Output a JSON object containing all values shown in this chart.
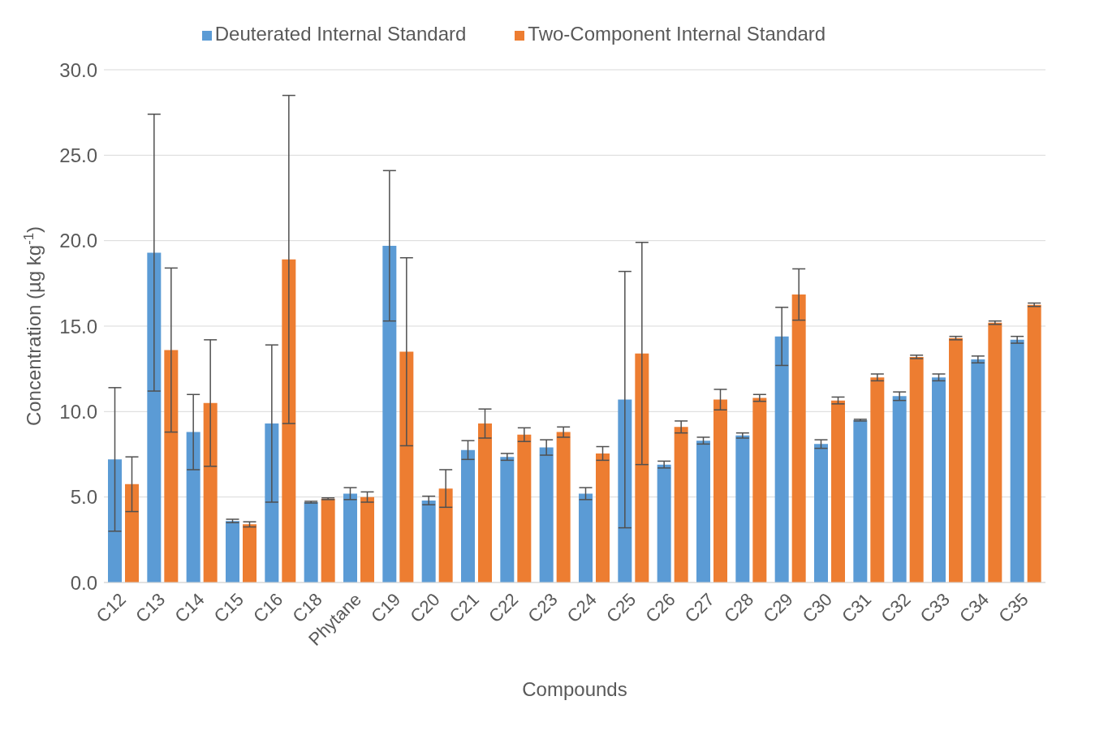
{
  "chart_data": {
    "type": "bar",
    "xlabel": "Compounds",
    "ylabel": "Concentration (µg kg$^{-1}$)",
    "categories": [
      "C12",
      "C13",
      "C14",
      "C15",
      "C16",
      "C18",
      "Phytane",
      "C19",
      "C20",
      "C21",
      "C22",
      "C23",
      "C24",
      "C25",
      "C26",
      "C27",
      "C28",
      "C29",
      "C30",
      "C31",
      "C32",
      "C33",
      "C34",
      "C35"
    ],
    "series": [
      {
        "name": "Deuterated Internal Standard",
        "color": "#5b9bd5",
        "values": [
          7.2,
          19.3,
          8.8,
          3.6,
          9.3,
          4.7,
          5.2,
          19.7,
          4.8,
          7.75,
          7.35,
          7.9,
          5.2,
          10.7,
          6.9,
          8.3,
          8.6,
          14.4,
          8.1,
          9.5,
          10.9,
          12.0,
          13.05,
          14.2
        ],
        "errors": [
          4.2,
          8.1,
          2.2,
          0.1,
          4.6,
          0.05,
          0.35,
          4.4,
          0.25,
          0.55,
          0.2,
          0.45,
          0.35,
          7.5,
          0.2,
          0.2,
          0.15,
          1.7,
          0.25,
          0.05,
          0.25,
          0.2,
          0.2,
          0.2
        ]
      },
      {
        "name": "Two-Component Internal Standard",
        "color": "#ed7d31",
        "values": [
          5.75,
          13.6,
          10.5,
          3.4,
          18.9,
          4.9,
          5.0,
          13.5,
          5.5,
          9.3,
          8.65,
          8.8,
          7.55,
          13.4,
          9.1,
          10.7,
          10.8,
          16.85,
          10.65,
          12.0,
          13.2,
          14.3,
          15.2,
          16.25
        ],
        "errors": [
          1.6,
          4.8,
          3.7,
          0.15,
          9.6,
          0.05,
          0.3,
          5.5,
          1.1,
          0.85,
          0.4,
          0.3,
          0.4,
          6.5,
          0.35,
          0.6,
          0.2,
          1.5,
          0.2,
          0.2,
          0.1,
          0.1,
          0.1,
          0.1
        ]
      }
    ],
    "ylim": [
      0,
      30
    ],
    "yticks": [
      {
        "value": 0,
        "label": "0.0"
      },
      {
        "value": 5,
        "label": "5.0"
      },
      {
        "value": 10,
        "label": "10.0"
      },
      {
        "value": 15,
        "label": "15.0"
      },
      {
        "value": 20,
        "label": "20.0"
      },
      {
        "value": 25,
        "label": "25.0"
      },
      {
        "value": 30,
        "label": "30.0"
      }
    ],
    "grid": "y",
    "legend": "top"
  }
}
